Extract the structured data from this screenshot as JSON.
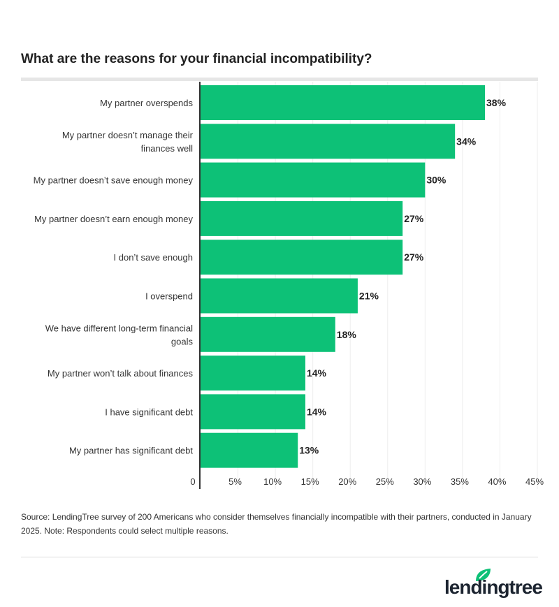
{
  "chart_data": {
    "type": "bar",
    "orientation": "horizontal",
    "title": "What are the reasons for your financial incompatibility?",
    "categories": [
      [
        "My partner overspends"
      ],
      [
        "My partner doesn’t manage their",
        "finances well"
      ],
      [
        "My partner doesn’t save enough money"
      ],
      [
        "My partner doesn’t earn enough money"
      ],
      [
        "I don’t save enough"
      ],
      [
        "I overspend"
      ],
      [
        "We have different long-term financial",
        "goals"
      ],
      [
        "My partner won’t talk about finances"
      ],
      [
        "I have significant debt"
      ],
      [
        "My partner has significant debt"
      ]
    ],
    "values": [
      38,
      34,
      30,
      27,
      27,
      21,
      18,
      14,
      14,
      13
    ],
    "data_labels": [
      "38%",
      "34%",
      "30%",
      "27%",
      "27%",
      "21%",
      "18%",
      "14%",
      "14%",
      "13%"
    ],
    "xlim": [
      0,
      45
    ],
    "xticks": [
      0,
      5,
      10,
      15,
      20,
      25,
      30,
      35,
      40,
      45
    ],
    "xtick_labels": [
      "0",
      "5%",
      "10%",
      "15%",
      "20%",
      "25%",
      "30%",
      "35%",
      "40%",
      "45%"
    ],
    "grid": true,
    "bar_color": "#0dc177"
  },
  "source": "Source: LendingTree survey of 200 Americans who consider themselves financially incompatible with their partners, conducted in January 2025. Note: Respondents could select multiple reasons.",
  "logo": {
    "text": "lendingtree",
    "leaf_color": "#0dc177"
  }
}
